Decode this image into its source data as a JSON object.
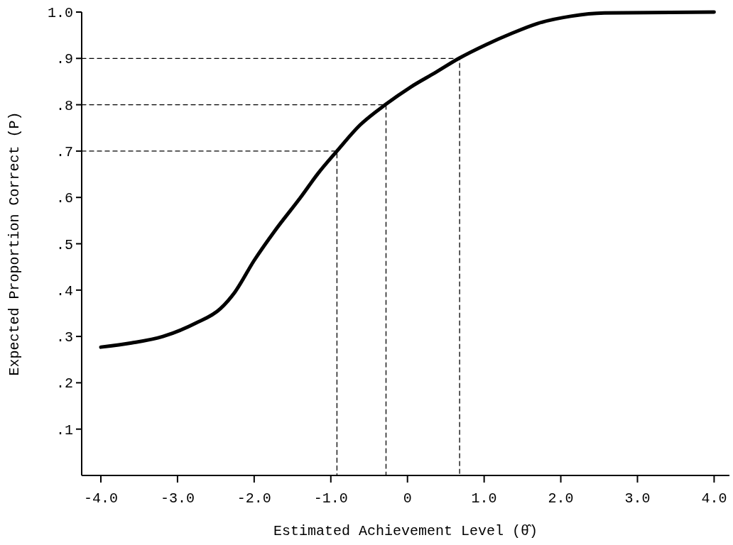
{
  "chart_data": {
    "type": "line",
    "xlabel": "Estimated Achievement Level (θ̂)",
    "ylabel": "Expected Proportion Correct (P)",
    "xlim": [
      -4.25,
      4.2
    ],
    "ylim": [
      0,
      1
    ],
    "xticks": [
      {
        "value": -4,
        "label": "-4.0"
      },
      {
        "value": -3,
        "label": "-3.0"
      },
      {
        "value": -2,
        "label": "-2.0"
      },
      {
        "value": -1,
        "label": "-1.0"
      },
      0,
      {
        "value": 1,
        "label": "1.0"
      },
      {
        "value": 2,
        "label": "2.0"
      },
      {
        "value": 3,
        "label": "3.0"
      },
      {
        "value": 4,
        "label": "4.0"
      }
    ],
    "yticks": [
      {
        "value": 0.1,
        "label": ".1"
      },
      {
        "value": 0.2,
        "label": ".2"
      },
      {
        "value": 0.3,
        "label": ".3"
      },
      {
        "value": 0.4,
        "label": ".4"
      },
      {
        "value": 0.5,
        "label": ".5"
      },
      {
        "value": 0.6,
        "label": ".6"
      },
      {
        "value": 0.7,
        "label": ".7"
      },
      {
        "value": 0.8,
        "label": ".8"
      },
      {
        "value": 0.9,
        "label": ".9"
      },
      {
        "value": 1,
        "label": "1.0"
      }
    ],
    "grid": false,
    "series": [
      {
        "color": "#000000",
        "line_style": "solid",
        "x": [
          -4.0,
          -3.6,
          -3.19,
          -2.77,
          -2.44,
          -2.25,
          -2.0,
          -1.73,
          -1.39,
          -1.17,
          -0.92,
          -0.62,
          -0.29,
          0.04,
          0.37,
          0.67,
          1.03,
          1.36,
          1.69,
          2.13,
          2.57,
          4.0
        ],
        "values": [
          0.277,
          0.286,
          0.3,
          0.328,
          0.36,
          0.396,
          0.464,
          0.528,
          0.601,
          0.651,
          0.7,
          0.756,
          0.8,
          0.838,
          0.87,
          0.9,
          0.93,
          0.954,
          0.975,
          0.991,
          0.998,
          1.0
        ]
      },
      {
        "color": "#000000",
        "line_style": "dashed",
        "x": [
          -4.25,
          -0.92,
          -0.92
        ],
        "values": [
          0.7,
          0.7,
          0
        ]
      },
      {
        "color": "#000000",
        "line_style": "dashed",
        "x": [
          -4.25,
          -0.28,
          -0.28
        ],
        "values": [
          0.8,
          0.8,
          0
        ]
      },
      {
        "color": "#000000",
        "line_style": "dashed",
        "x": [
          -4.25,
          0.68,
          0.68
        ],
        "values": [
          0.9,
          0.9,
          0
        ]
      }
    ]
  }
}
